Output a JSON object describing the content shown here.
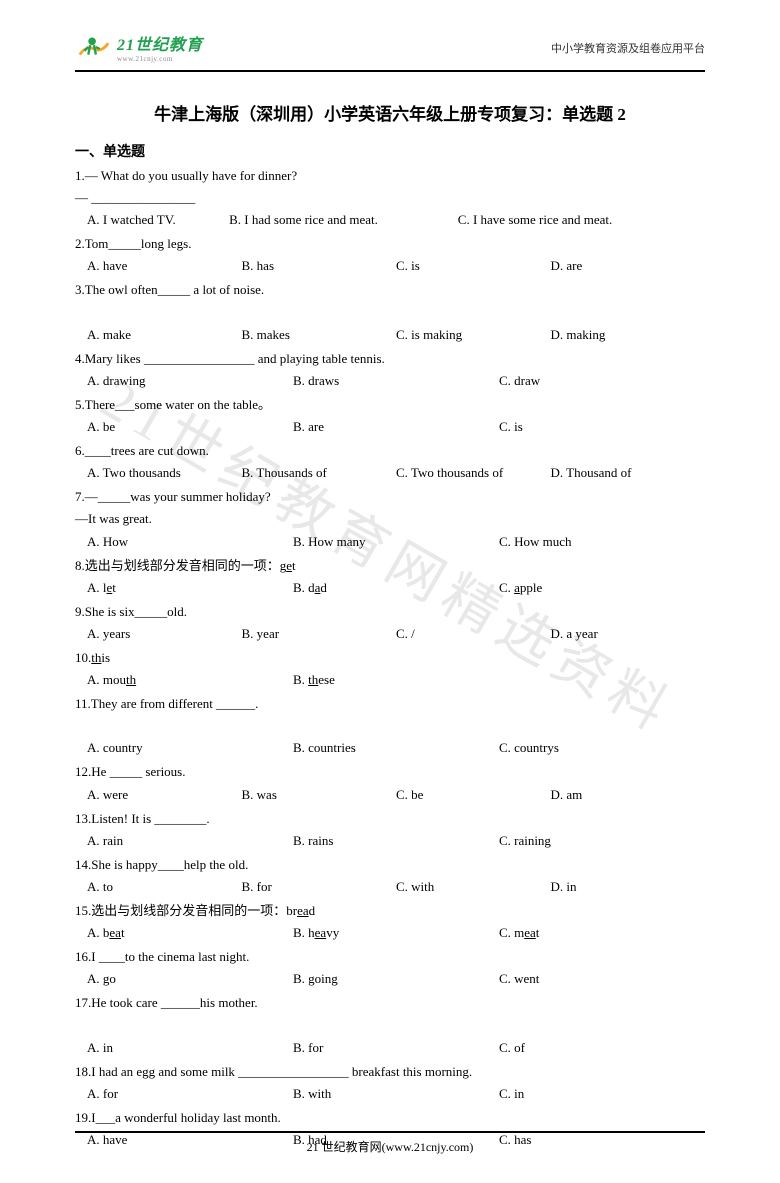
{
  "header": {
    "logo_main": "21世纪教育",
    "logo_sub": "www.21cnjy.com",
    "right_text": "中小学教育资源及组卷应用平台"
  },
  "title": "牛津上海版（深圳用）小学英语六年级上册专项复习：单选题 2",
  "section": "一、单选题",
  "watermark": "21世纪教育网精选资料",
  "questions": [
    {
      "num": "1",
      "lines": [
        "— What do you usually have for dinner?",
        "— ________________"
      ],
      "options": [
        "A. I watched TV.",
        "B. I had some rice and meat.",
        "C. I have some rice and meat."
      ],
      "layout": "opt-3-shift"
    },
    {
      "num": "2",
      "lines": [
        "Tom_____long legs."
      ],
      "options": [
        "A. have",
        "B. has",
        "C. is",
        "D. are"
      ],
      "layout": "opt-4"
    },
    {
      "num": "3",
      "lines": [
        "The owl often_____ a lot of noise.",
        ""
      ],
      "options": [
        "A. make",
        "B. makes",
        "C. is making",
        "D. making"
      ],
      "layout": "opt-4"
    },
    {
      "num": "4",
      "lines": [
        "Mary likes _________________ and playing table tennis."
      ],
      "options": [
        "A. drawing",
        "B. draws",
        "C. draw"
      ],
      "layout": "opt-3"
    },
    {
      "num": "5",
      "lines": [
        "There___some water on the table。"
      ],
      "options": [
        "A. be",
        "B. are",
        "C. is"
      ],
      "layout": "opt-3"
    },
    {
      "num": "6",
      "lines": [
        "____trees are cut down."
      ],
      "options": [
        "A. Two thousands",
        "B. Thousands of",
        "C. Two thousands of",
        "D. Thousand of"
      ],
      "layout": "opt-4"
    },
    {
      "num": "7",
      "lines": [
        "—_____was your summer holiday?",
        "—It was great."
      ],
      "options": [
        "A. How",
        "B. How many",
        "C. How much"
      ],
      "layout": "opt-3"
    },
    {
      "num": "8",
      "lines": [
        "选出与划线部分发音相同的一项：g<u>e</u>t"
      ],
      "options": [
        "A. l<u>e</u>t",
        "B. d<u>a</u>d",
        "C. <u>a</u>pple"
      ],
      "layout": "opt-3"
    },
    {
      "num": "9",
      "lines": [
        "She is six_____old."
      ],
      "options": [
        "A. years",
        "B. year",
        "C. /",
        "D. a year"
      ],
      "layout": "opt-4"
    },
    {
      "num": "10",
      "lines": [
        "<u>th</u>is"
      ],
      "options": [
        "A. mou<u>th</u>",
        "B. <u>th</u>ese"
      ],
      "layout": "opt-3"
    },
    {
      "num": "11",
      "lines": [
        "They are from different ______.",
        ""
      ],
      "options": [
        "A. country",
        "B. countries",
        "C. countrys"
      ],
      "layout": "opt-3"
    },
    {
      "num": "12",
      "lines": [
        "He _____ serious."
      ],
      "options": [
        "A. were",
        "B. was",
        "C. be",
        "D. am"
      ],
      "layout": "opt-4"
    },
    {
      "num": "13",
      "lines": [
        "Listen! It is ________."
      ],
      "options": [
        "A. rain",
        "B. rains",
        "C. raining"
      ],
      "layout": "opt-3"
    },
    {
      "num": "14",
      "lines": [
        "She is happy____help the old."
      ],
      "options": [
        "A. to",
        "B. for",
        "C. with",
        "D. in"
      ],
      "layout": "opt-4"
    },
    {
      "num": "15",
      "lines": [
        "选出与划线部分发音相同的一项：br<u>ea</u>d"
      ],
      "options": [
        "A. b<u>ea</u>t",
        "B. h<u>ea</u>vy",
        "C. m<u>ea</u>t"
      ],
      "layout": "opt-3"
    },
    {
      "num": "16",
      "lines": [
        "I ____to the cinema last night."
      ],
      "options": [
        "A. go",
        "B. going",
        "C. went"
      ],
      "layout": "opt-3"
    },
    {
      "num": "17",
      "lines": [
        "He took care ______his mother.",
        ""
      ],
      "options": [
        "A. in",
        "B. for",
        "C. of"
      ],
      "layout": "opt-3"
    },
    {
      "num": "18",
      "lines": [
        "I had an egg and some milk _________________ breakfast this morning."
      ],
      "options": [
        "A. for",
        "B. with",
        "C. in"
      ],
      "layout": "opt-3"
    },
    {
      "num": "19",
      "lines": [
        "I___a wonderful holiday last month."
      ],
      "options": [
        "A. have",
        "B. had",
        "C. has"
      ],
      "layout": "opt-3"
    }
  ],
  "footer": "21 世纪教育网(www.21cnjy.com)"
}
